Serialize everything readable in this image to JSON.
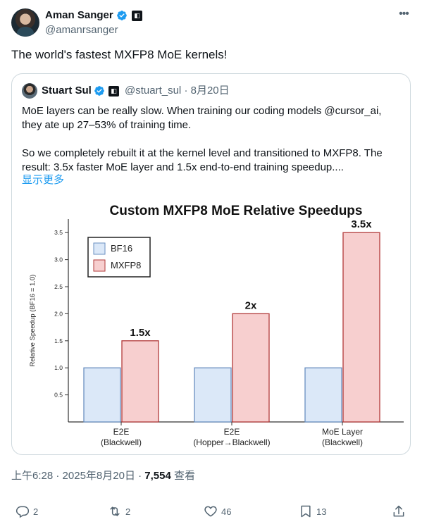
{
  "author": {
    "name": "Aman Sanger",
    "handle": "@amanrsanger",
    "verified_color": "#1d9bf0"
  },
  "more_icon": "ellipsis-icon",
  "tweet_text": "The world's fastest MXFP8 MoE kernels!",
  "quote": {
    "name": "Stuart Sul",
    "handle": "@stuart_sul",
    "separator": "·",
    "date": "8月20日",
    "paragraph1_line1": "MoE layers can be really slow. When training our coding models @cursor_ai,",
    "paragraph1_line2": "they ate up 27–53% of training time.",
    "paragraph2_line1": "So we completely rebuilt it at the kernel level and transitioned to MXFP8. The",
    "paragraph2_line2": "result: 3.5x faster MoE layer and 1.5x end-to-end training speedup....",
    "show_more": "显示更多"
  },
  "chart_data": {
    "type": "bar",
    "title": "Custom MXFP8 MoE Relative Speedups",
    "ylabel": "Relative Speedup (BF16 = 1.0)",
    "ylim": [
      0,
      3.75
    ],
    "yticks": [
      0.5,
      1.0,
      1.5,
      2.0,
      2.5,
      3.0,
      3.5
    ],
    "ytick_labels": [
      "0.5",
      "1.0",
      "1.5",
      "2.0",
      "2.5",
      "3.0",
      "3.5"
    ],
    "categories": [
      [
        "E2E",
        "(Blackwell)"
      ],
      [
        "E2E",
        "(Hopper→Blackwell)"
      ],
      [
        "MoE Layer",
        "(Blackwell)"
      ]
    ],
    "series": [
      {
        "name": "BF16",
        "values": [
          1.0,
          1.0,
          1.0
        ],
        "color": "#dbe8f8",
        "edge": "#6a8fc0"
      },
      {
        "name": "MXFP8",
        "values": [
          1.5,
          2.0,
          3.5
        ],
        "color": "#f7cfcf",
        "edge": "#b23a3a"
      }
    ],
    "data_labels": [
      "1.5x",
      "2x",
      "3.5x"
    ],
    "legend": "top-left",
    "grid": false
  },
  "timestamp": {
    "time": "上午6:28",
    "date": "2025年8月20日",
    "views_count": "7,554",
    "views_label": "查看",
    "sep": "·"
  },
  "actions": {
    "replies": "2",
    "reposts": "2",
    "likes": "46",
    "bookmarks": "13"
  }
}
